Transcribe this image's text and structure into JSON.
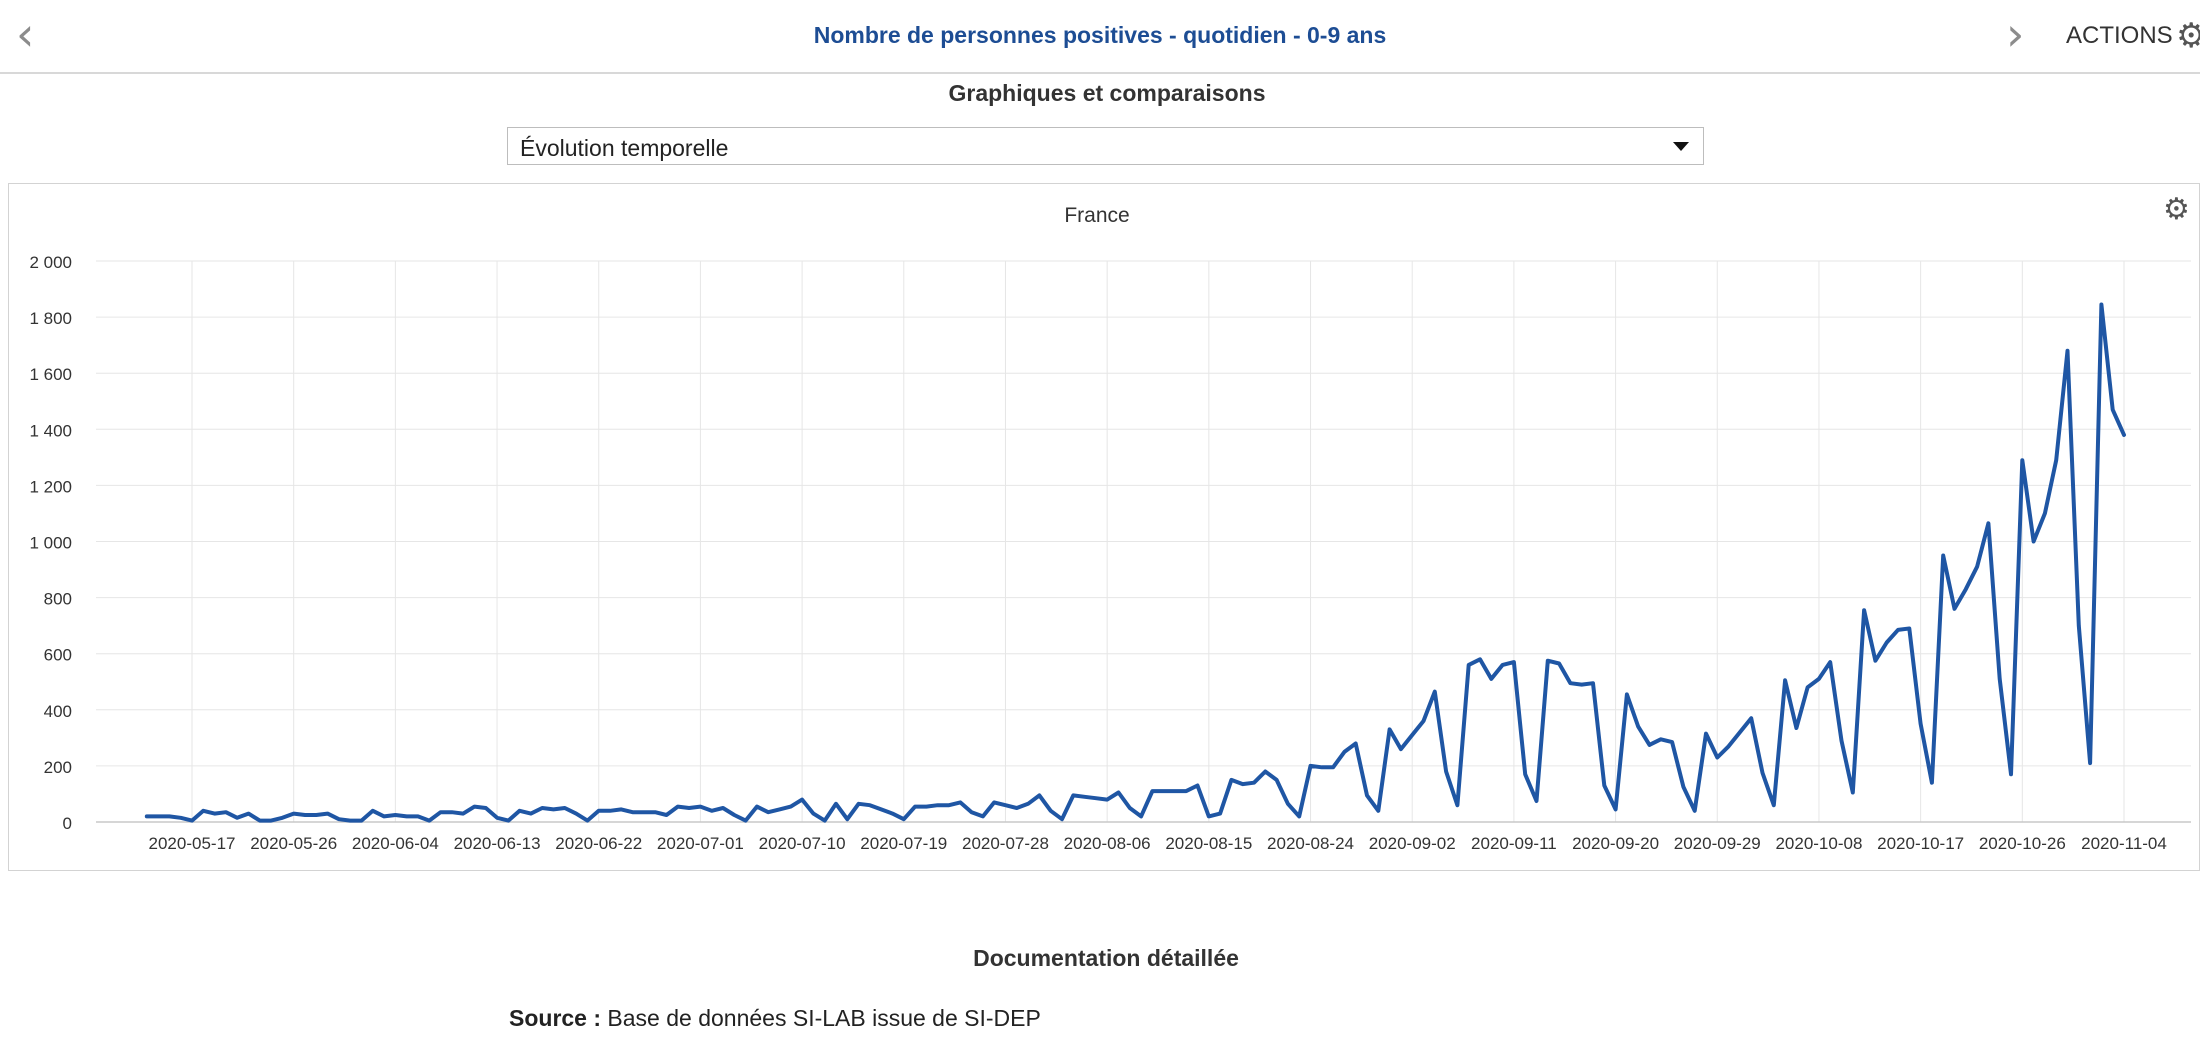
{
  "header": {
    "title": "Nombre de personnes positives - quotidien - 0-9 ans",
    "prev_icon": "chevron-left-icon",
    "next_icon": "chevron-right-icon",
    "actions_label": "ACTIONS",
    "actions_icon": "gear-icon"
  },
  "section_title": "Graphiques et comparaisons",
  "view_select": {
    "value": "Évolution temporelle"
  },
  "documentation_title": "Documentation détaillée",
  "source": {
    "label": "Source :",
    "text": "Base de données SI-LAB issue de SI-DEP"
  },
  "colors": {
    "accent": "#1d4d94",
    "series": "#1f56a4"
  },
  "chart_data": {
    "type": "line",
    "title": "France",
    "xlabel": "",
    "ylabel": "",
    "ylim": [
      0,
      2000
    ],
    "y_ticks": [
      0,
      200,
      400,
      600,
      800,
      1000,
      1200,
      1400,
      1600,
      1800,
      2000
    ],
    "y_tick_labels": [
      "0",
      "200",
      "400",
      "600",
      "800",
      "1 000",
      "1 200",
      "1 400",
      "1 600",
      "1 800",
      "2 000"
    ],
    "x_ticks": [
      "2020-05-17",
      "2020-05-26",
      "2020-06-04",
      "2020-06-13",
      "2020-06-22",
      "2020-07-01",
      "2020-07-10",
      "2020-07-19",
      "2020-07-28",
      "2020-08-06",
      "2020-08-15",
      "2020-08-24",
      "2020-09-02",
      "2020-09-11",
      "2020-09-20",
      "2020-09-29",
      "2020-10-08",
      "2020-10-17",
      "2020-10-26",
      "2020-11-04"
    ],
    "x_start": "2020-05-13",
    "grid": true,
    "series": [
      {
        "color": "#1f56a4",
        "values": [
          20,
          20,
          20,
          15,
          5,
          40,
          30,
          35,
          15,
          30,
          5,
          5,
          15,
          30,
          25,
          25,
          30,
          10,
          5,
          5,
          40,
          20,
          25,
          20,
          20,
          5,
          35,
          35,
          30,
          55,
          50,
          15,
          5,
          40,
          30,
          50,
          45,
          50,
          30,
          5,
          40,
          40,
          45,
          35,
          35,
          35,
          25,
          55,
          50,
          55,
          40,
          50,
          25,
          5,
          55,
          35,
          45,
          55,
          80,
          30,
          5,
          65,
          10,
          65,
          60,
          45,
          30,
          10,
          55,
          55,
          60,
          60,
          70,
          35,
          20,
          70,
          60,
          50,
          65,
          95,
          40,
          10,
          95,
          90,
          85,
          80,
          105,
          50,
          20,
          110,
          110,
          110,
          110,
          130,
          20,
          30,
          150,
          135,
          140,
          180,
          150,
          65,
          20,
          200,
          195,
          195,
          250,
          280,
          95,
          40,
          330,
          260,
          310,
          360,
          465,
          180,
          60,
          560,
          580,
          510,
          560,
          570,
          170,
          75,
          575,
          565,
          495,
          490,
          495,
          130,
          45,
          455,
          340,
          275,
          295,
          285,
          125,
          40,
          315,
          230,
          270,
          320,
          370,
          175,
          60,
          505,
          335,
          480,
          510,
          570,
          290,
          105,
          755,
          575,
          640,
          685,
          690,
          350,
          140,
          950,
          760,
          830,
          910,
          1065,
          510,
          170,
          1290,
          1000,
          1100,
          1290,
          1680,
          700,
          210,
          1845,
          1470,
          1380
        ]
      }
    ]
  }
}
